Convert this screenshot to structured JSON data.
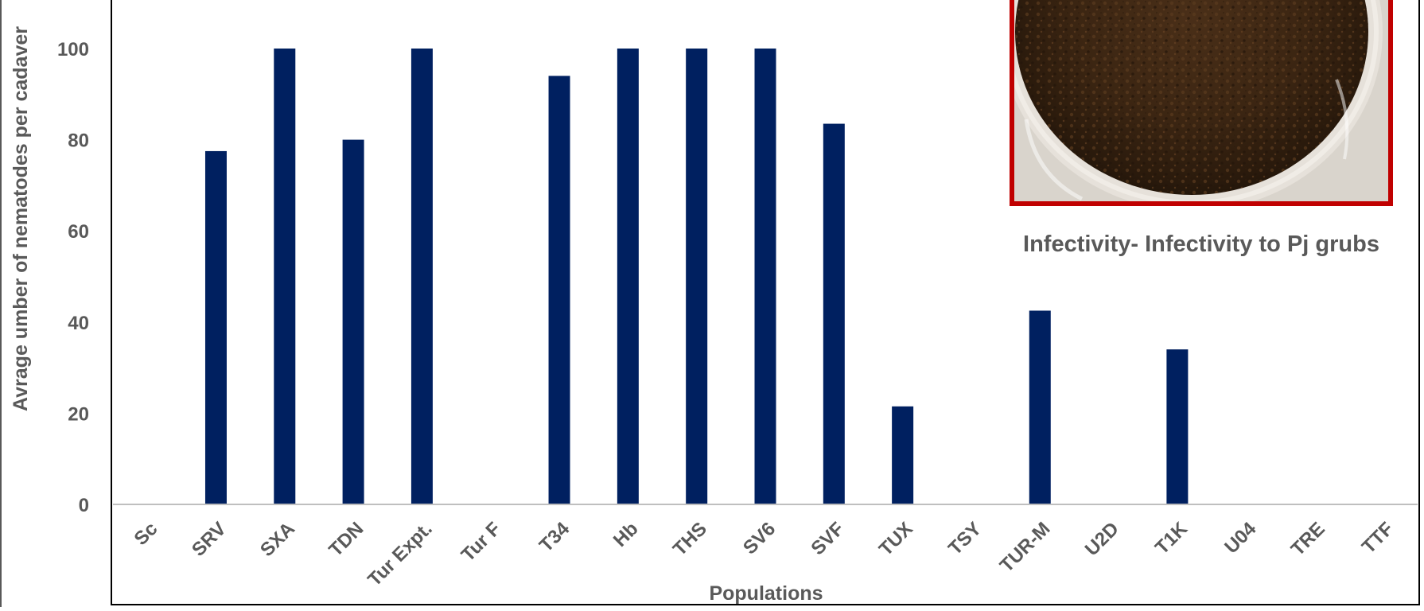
{
  "chart_data": {
    "type": "bar",
    "title": "",
    "xlabel": "Populations",
    "ylabel": "Avrage umber of nematodes per cadaver",
    "categories": [
      "Sc",
      "SRV",
      "SXA",
      "TDN",
      "Tur Expt.",
      "Tur F",
      "T34",
      "Hb",
      "THS",
      "SV6",
      "SVF",
      "TUX",
      "TSY",
      "TUR-M",
      "U2D",
      "T1K",
      "U04",
      "TRE",
      "TTF"
    ],
    "series": [
      {
        "values": [
          0,
          77.5,
          100,
          80,
          100,
          0,
          94,
          100,
          100,
          100,
          83.5,
          21.5,
          0,
          42.5,
          0,
          34,
          0,
          0,
          0
        ]
      }
    ],
    "y_ticks": [
      0,
      20,
      40,
      60,
      80,
      100
    ],
    "ylim": [
      0,
      110
    ],
    "grid": false,
    "legend": "none",
    "bar_color": "#002060",
    "annotation": "Infectivity- Infectivity to Pj grubs",
    "inset_image": {
      "description_icon": "soil-sample-photo",
      "frame_color": "#C00000"
    }
  }
}
